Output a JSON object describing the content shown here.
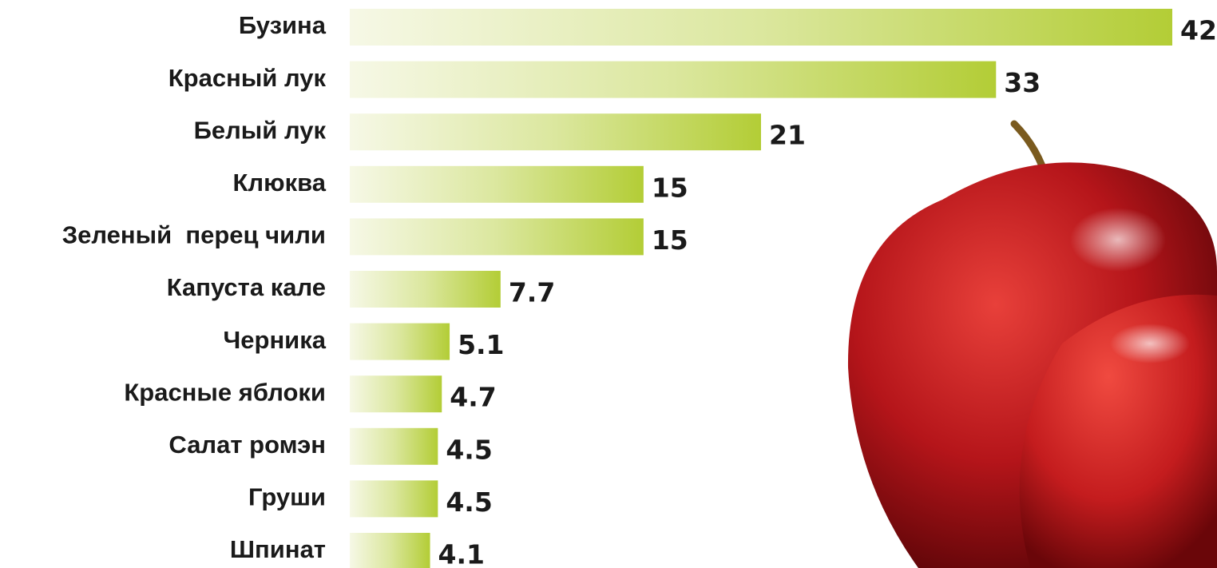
{
  "chart_data": {
    "type": "hbar",
    "categories": [
      "Бузина",
      "Красный лук",
      "Белый лук",
      "Клюква",
      "Зеленый  перец чили",
      "Капуста кале",
      "Черника",
      "Красные яблоки",
      "Салат ромэн",
      "Груши",
      "Шпинат"
    ],
    "values": [
      42,
      33,
      21,
      15,
      15,
      7.7,
      5.1,
      4.7,
      4.5,
      4.5,
      4.1
    ],
    "color": "#b3cd36"
  }
}
